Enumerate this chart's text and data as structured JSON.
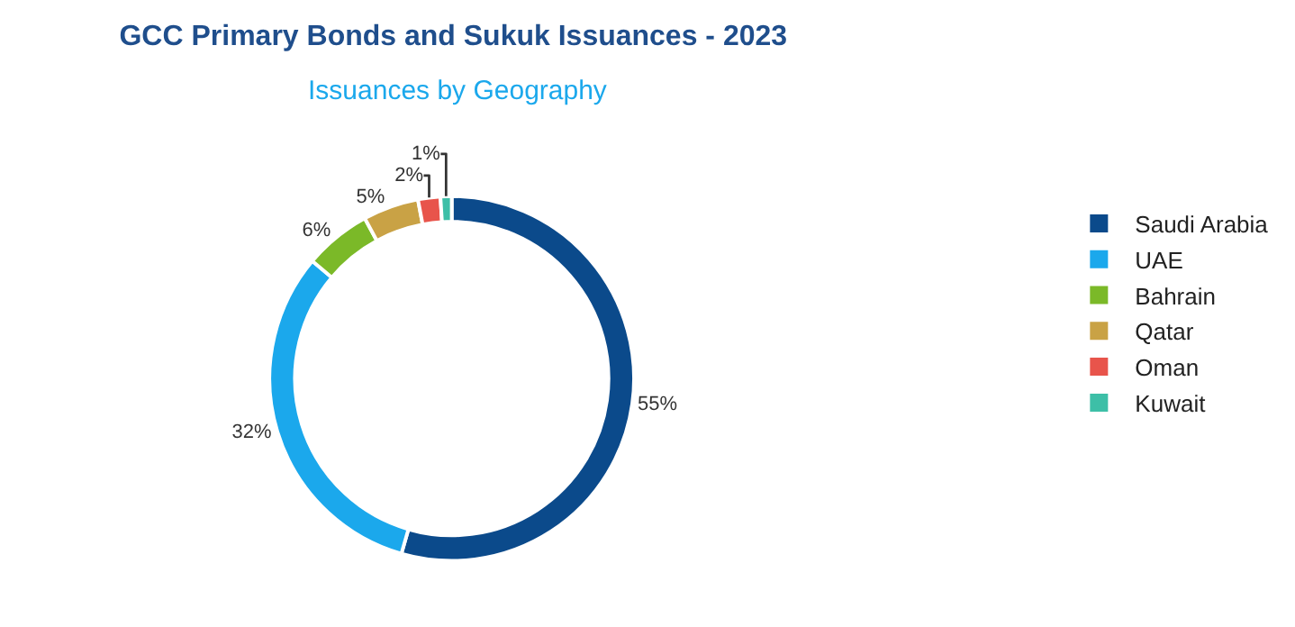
{
  "chart_data": {
    "type": "donut",
    "title": "GCC Primary Bonds and Sukuk Issuances - 2023",
    "subtitle": "Issuances by Geography",
    "categories": [
      "Saudi Arabia",
      "UAE",
      "Bahrain",
      "Qatar",
      "Oman",
      "Kuwait"
    ],
    "values": [
      55,
      32,
      6,
      5,
      2,
      1
    ],
    "value_labels": [
      "55%",
      "32%",
      "6%",
      "5%",
      "2%",
      "1%"
    ],
    "colors": [
      "#0b4a8b",
      "#1ba8ec",
      "#7bb928",
      "#c9a245",
      "#e8544b",
      "#3dbfa7"
    ],
    "legend": "right"
  }
}
